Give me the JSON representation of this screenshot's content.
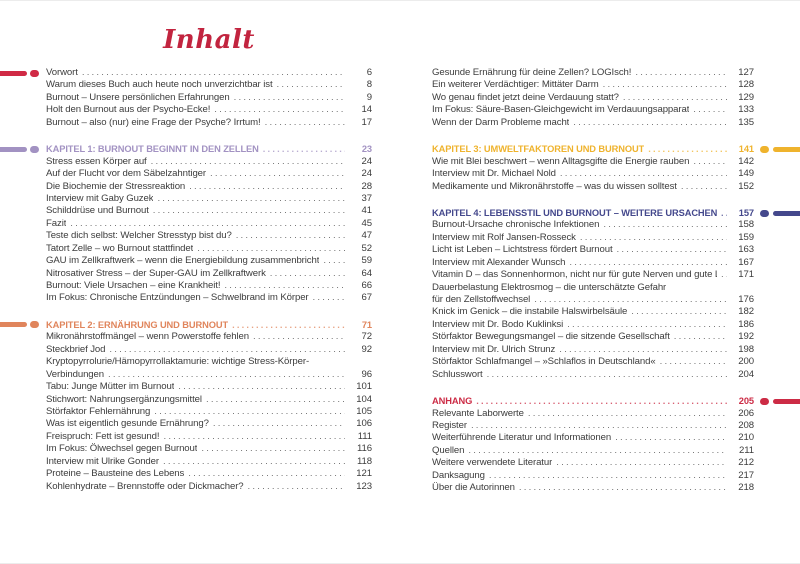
{
  "title": "Inhalt",
  "colors": {
    "title_red": "#C2243F",
    "front_marker_red": "#D02A45",
    "chapter1_lavender": "#A292C2",
    "chapter2_orange": "#E0855C",
    "chapter3_gold": "#EFB32D",
    "chapter4_navy": "#44488C",
    "anhang_red": "#CC2B45",
    "body_text": "#3C3C3C"
  },
  "left_rows": [
    {
      "text": "Vorwort",
      "page": "6",
      "kind": "item",
      "marker": "left",
      "marker_color": "#D02A45"
    },
    {
      "text": "Warum dieses Buch auch heute noch unverzichtbar ist",
      "page": "8",
      "kind": "item"
    },
    {
      "text": "Burnout – Unsere persönlichen Erfahrungen",
      "page": "9",
      "kind": "item"
    },
    {
      "text": "Holt den Burnout aus der Psycho-Ecke!",
      "page": "14",
      "kind": "item"
    },
    {
      "text": "Burnout – also (nur) eine Frage der Psyche? Irrtum!",
      "page": "17",
      "kind": "item"
    },
    {
      "text": "KAPITEL 1: BURNOUT BEGINNT IN DEN ZELLEN",
      "page": "23",
      "kind": "chapter",
      "color": "#A292C2",
      "marker": "left"
    },
    {
      "text": "Stress essen Körper auf",
      "page": "24",
      "kind": "item"
    },
    {
      "text": "Auf der Flucht vor dem Säbelzahntiger",
      "page": "24",
      "kind": "item"
    },
    {
      "text": "Die Biochemie der Stressreaktion",
      "page": "28",
      "kind": "item"
    },
    {
      "text": "Interview mit Gaby Guzek",
      "page": "37",
      "kind": "item"
    },
    {
      "text": "Schilddrüse und Burnout",
      "page": "41",
      "kind": "item"
    },
    {
      "text": "Fazit",
      "page": "45",
      "kind": "item"
    },
    {
      "text": "Teste dich selbst: Welcher Stresstyp bist du?",
      "page": "47",
      "kind": "item"
    },
    {
      "text": "Tatort Zelle – wo Burnout stattfindet",
      "page": "52",
      "kind": "item"
    },
    {
      "text": "GAU im Zellkraftwerk – wenn die Energiebildung zusammenbricht",
      "page": "59",
      "kind": "item"
    },
    {
      "text": "Nitrosativer Stress – der Super-GAU im Zellkraftwerk",
      "page": "64",
      "kind": "item"
    },
    {
      "text": "Burnout: Viele Ursachen – eine Krankheit!",
      "page": "66",
      "kind": "item"
    },
    {
      "text": "Im Fokus: Chronische Entzündungen – Schwelbrand im Körper",
      "page": "67",
      "kind": "item"
    },
    {
      "text": "KAPITEL 2: ERNÄHRUNG UND BURNOUT",
      "page": "71",
      "kind": "chapter",
      "color": "#E0855C",
      "marker": "left"
    },
    {
      "text": "Mikronährstoffmängel – wenn Powerstoffe fehlen",
      "page": "72",
      "kind": "item"
    },
    {
      "text": "Steckbrief Jod",
      "page": "92",
      "kind": "item"
    },
    {
      "text": "Kryptopyrrolurie/Hämopyrrollaktamurie: wichtige Stress-Körper-",
      "kind": "wrap"
    },
    {
      "text": "Verbindungen",
      "page": "96",
      "kind": "item"
    },
    {
      "text": "Tabu: Junge Mütter im Burnout",
      "page": "101",
      "kind": "item"
    },
    {
      "text": "Stichwort: Nahrungsergänzungsmittel",
      "page": "104",
      "kind": "item"
    },
    {
      "text": "Störfaktor Fehlernährung",
      "page": "105",
      "kind": "item"
    },
    {
      "text": "Was ist eigentlich gesunde Ernährung?",
      "page": "106",
      "kind": "item"
    },
    {
      "text": "Freispruch: Fett ist gesund!",
      "page": "111",
      "kind": "item"
    },
    {
      "text": "Im Fokus: Ölwechsel gegen Burnout",
      "page": "116",
      "kind": "item"
    },
    {
      "text": "Interview mit Ulrike Gonder",
      "page": "118",
      "kind": "item"
    },
    {
      "text": "Proteine – Bausteine des Lebens",
      "page": "121",
      "kind": "item"
    },
    {
      "text": "Kohlenhydrate – Brennstoffe oder Dickmacher?",
      "page": "123",
      "kind": "item"
    }
  ],
  "right_rows": [
    {
      "text": "Gesunde Ernährung für deine Zellen? LOGIsch!",
      "page": "127",
      "kind": "item"
    },
    {
      "text": "Ein weiterer Verdächtiger: Mittäter Darm",
      "page": "128",
      "kind": "item"
    },
    {
      "text": "Wo genau findet jetzt deine Verdauung statt?",
      "page": "129",
      "kind": "item"
    },
    {
      "text": "Im Fokus: Säure-Basen-Gleichgewicht im Verdauungsapparat",
      "page": "133",
      "kind": "item"
    },
    {
      "text": "Wenn der Darm Probleme macht",
      "page": "135",
      "kind": "item"
    },
    {
      "text": "KAPITEL 3: UMWELTFAKTOREN UND BURNOUT",
      "page": "141",
      "kind": "chapter",
      "color": "#EFB32D",
      "marker": "right"
    },
    {
      "text": "Wie mit Blei beschwert – wenn Alltagsgifte die Energie rauben",
      "page": "142",
      "kind": "item"
    },
    {
      "text": "Interview mit Dr. Michael Nold",
      "page": "149",
      "kind": "item"
    },
    {
      "text": "Medikamente und Mikronährstoffe – was du wissen solltest",
      "page": "152",
      "kind": "item"
    },
    {
      "text": "KAPITEL 4: LEBENSSTIL UND BURNOUT – WEITERE URSACHEN",
      "page": "157",
      "kind": "chapter",
      "color": "#44488C",
      "marker": "right"
    },
    {
      "text": "Burnout-Ursache chronische Infektionen",
      "page": "158",
      "kind": "item"
    },
    {
      "text": "Interview mit Rolf Jansen-Rosseck",
      "page": "159",
      "kind": "item"
    },
    {
      "text": "Licht ist Leben – Lichtstress fördert Burnout",
      "page": "163",
      "kind": "item"
    },
    {
      "text": "Interview mit Alexander Wunsch",
      "page": "167",
      "kind": "item"
    },
    {
      "text": "Vitamin D – das Sonnenhormon, nicht nur für gute Nerven und gute Laune",
      "page": "171",
      "kind": "item"
    },
    {
      "text": "Dauerbelastung Elektrosmog – die unterschätzte Gefahr",
      "kind": "wrap"
    },
    {
      "text": "für den Zellstoffwechsel",
      "page": "176",
      "kind": "item"
    },
    {
      "text": "Knick im Genick – die instabile Halswirbelsäule",
      "page": "182",
      "kind": "item"
    },
    {
      "text": "Interview mit Dr. Bodo Kuklinksi",
      "page": "186",
      "kind": "item"
    },
    {
      "text": "Störfaktor Bewegungsmangel – die sitzende Gesellschaft",
      "page": "192",
      "kind": "item"
    },
    {
      "text": "Interview mit Dr. Ulrich Strunz",
      "page": "198",
      "kind": "item"
    },
    {
      "text": "Störfaktor Schlafmangel – »Schlaflos in Deutschland«",
      "page": "200",
      "kind": "item"
    },
    {
      "text": "Schlusswort",
      "page": "204",
      "kind": "item"
    },
    {
      "text": "ANHANG",
      "page": "205",
      "kind": "chapter",
      "color": "#CC2B45",
      "marker": "right"
    },
    {
      "text": "Relevante Laborwerte",
      "page": "206",
      "kind": "item"
    },
    {
      "text": "Register",
      "page": "208",
      "kind": "item"
    },
    {
      "text": "Weiterführende Literatur und Informationen",
      "page": "210",
      "kind": "item"
    },
    {
      "text": "Quellen",
      "page": "211",
      "kind": "item"
    },
    {
      "text": "Weitere verwendete Literatur",
      "page": "212",
      "kind": "item"
    },
    {
      "text": "Danksagung",
      "page": "217",
      "kind": "item"
    },
    {
      "text": "Über die Autorinnen",
      "page": "218",
      "kind": "item"
    }
  ]
}
